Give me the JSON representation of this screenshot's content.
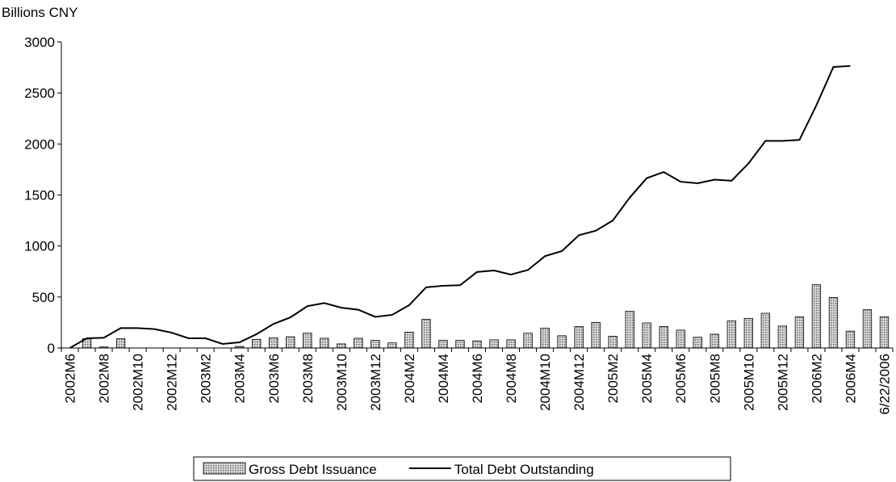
{
  "chart_data": {
    "type": "bar_line",
    "y_label": "Billions CNY",
    "categories": [
      "2002M6",
      null,
      "2002M8",
      null,
      "2002M10",
      null,
      "2002M12",
      null,
      "2003M2",
      null,
      "2003M4",
      null,
      "2003M6",
      null,
      "2003M8",
      null,
      "2003M10",
      null,
      "2003M12",
      null,
      "2004M2",
      null,
      "2004M4",
      null,
      "2004M6",
      null,
      "2004M8",
      null,
      "2004M10",
      null,
      "2004M12",
      null,
      "2005M2",
      null,
      "2005M4",
      null,
      "2005M6",
      null,
      "2005M8",
      null,
      "2005M10",
      null,
      "2005M12",
      null,
      "2006M2",
      null,
      "2006M4",
      null,
      "6/22/2006"
    ],
    "series": [
      {
        "name": "Gross Debt Issuance",
        "type": "bar",
        "color": "#8c8c8c",
        "values": [
          0,
          90,
          10,
          90,
          0,
          0,
          0,
          0,
          0,
          0,
          15,
          85,
          100,
          110,
          145,
          95,
          40,
          95,
          75,
          50,
          155,
          280,
          75,
          75,
          70,
          80,
          80,
          145,
          195,
          120,
          210,
          250,
          115,
          360,
          245,
          210,
          175,
          105,
          135,
          265,
          290,
          340,
          215,
          305,
          620,
          495,
          165,
          375,
          305
        ]
      },
      {
        "name": "Total Debt Outstanding",
        "type": "line",
        "color": "#000000",
        "values": [
          0,
          95,
          100,
          195,
          195,
          185,
          150,
          95,
          95,
          40,
          55,
          135,
          235,
          300,
          410,
          440,
          395,
          375,
          305,
          325,
          420,
          595,
          610,
          615,
          745,
          760,
          720,
          765,
          900,
          950,
          1105,
          1150,
          1250,
          1475,
          1665,
          1725,
          1630,
          1615,
          1650,
          1640,
          1810,
          2030,
          2030,
          2040,
          2380,
          2755,
          2765,
          null,
          null
        ]
      }
    ],
    "ylim": [
      0,
      3000
    ],
    "yticks": [
      0,
      500,
      1000,
      1500,
      2000,
      2500,
      3000
    ],
    "legend": "bottom"
  }
}
